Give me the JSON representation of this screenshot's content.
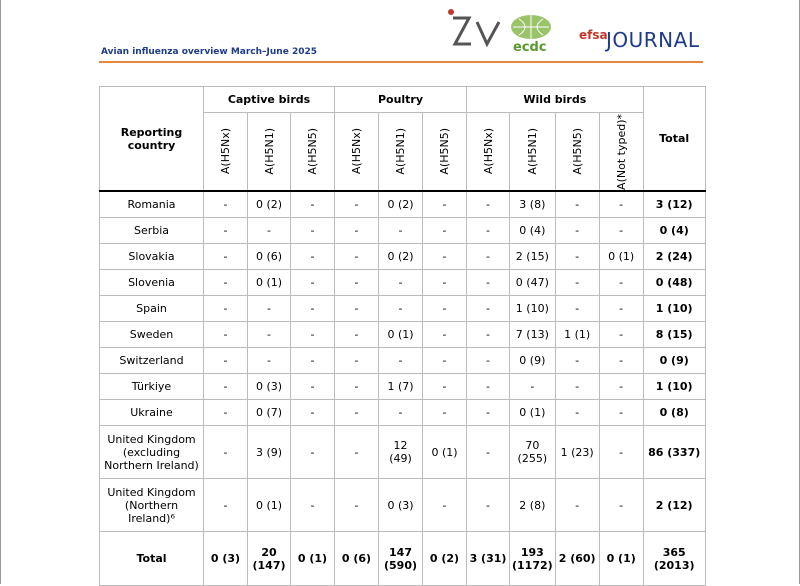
{
  "header": {
    "title": "Avian influenza overview March–June 2025",
    "logo_efsa": "efsa",
    "logo_journal": "JOURNAL",
    "logo_ecdc": "ecdc"
  },
  "table": {
    "country_header": "Reporting country",
    "groups": [
      "Captive birds",
      "Poultry",
      "Wild birds"
    ],
    "subheaders": [
      "A(H5Nx)",
      "A(H5N1)",
      "A(H5N5)",
      "A(H5Nx)",
      "A(H5N1)",
      "A(H5N5)",
      "A(H5Nx)",
      "A(H5N1)",
      "A(H5N5)",
      "A(Not typed)*"
    ],
    "total_header": "Total",
    "rows": [
      {
        "country": "Romania",
        "cells": [
          "-",
          "0 (2)",
          "-",
          "-",
          "0 (2)",
          "-",
          "-",
          "3 (8)",
          "-",
          "-",
          "3 (12)"
        ]
      },
      {
        "country": "Serbia",
        "cells": [
          "-",
          "-",
          "-",
          "-",
          "-",
          "-",
          "-",
          "0 (4)",
          "-",
          "-",
          "0 (4)"
        ]
      },
      {
        "country": "Slovakia",
        "cells": [
          "-",
          "0 (6)",
          "-",
          "-",
          "0 (2)",
          "-",
          "-",
          "2 (15)",
          "-",
          "0 (1)",
          "2 (24)"
        ]
      },
      {
        "country": "Slovenia",
        "cells": [
          "-",
          "0 (1)",
          "-",
          "-",
          "-",
          "-",
          "-",
          "0 (47)",
          "-",
          "-",
          "0 (48)"
        ]
      },
      {
        "country": "Spain",
        "cells": [
          "-",
          "-",
          "-",
          "-",
          "-",
          "-",
          "-",
          "1 (10)",
          "-",
          "-",
          "1 (10)"
        ]
      },
      {
        "country": "Sweden",
        "cells": [
          "-",
          "-",
          "-",
          "-",
          "0 (1)",
          "-",
          "-",
          "7 (13)",
          "1 (1)",
          "-",
          "8 (15)"
        ]
      },
      {
        "country": "Switzerland",
        "cells": [
          "-",
          "-",
          "-",
          "-",
          "-",
          "-",
          "-",
          "0 (9)",
          "-",
          "-",
          "0 (9)"
        ]
      },
      {
        "country": "Türkiye",
        "cells": [
          "-",
          "0 (3)",
          "-",
          "-",
          "1 (7)",
          "-",
          "-",
          "-",
          "-",
          "-",
          "1 (10)"
        ]
      },
      {
        "country": "Ukraine",
        "cells": [
          "-",
          "0 (7)",
          "-",
          "-",
          "-",
          "-",
          "-",
          "0 (1)",
          "-",
          "-",
          "0 (8)"
        ]
      },
      {
        "country": "United Kingdom (excluding Northern Ireland)",
        "cells": [
          "-",
          "3 (9)",
          "-",
          "-",
          "12 (49)",
          "0 (1)",
          "-",
          "70 (255)",
          "1 (23)",
          "-",
          "86 (337)"
        ]
      },
      {
        "country": "United Kingdom (Northern Ireland)⁶",
        "cells": [
          "-",
          "0 (1)",
          "-",
          "-",
          "0 (3)",
          "-",
          "-",
          "2 (8)",
          "-",
          "-",
          "2 (12)"
        ]
      }
    ],
    "total_row": {
      "label": "Total",
      "cells": [
        "0 (3)",
        "20 (147)",
        "0 (1)",
        "0 (6)",
        "147 (590)",
        "0 (2)",
        "3 (31)",
        "193 (1172)",
        "2 (60)",
        "0 (1)",
        "365 (2013)"
      ]
    }
  }
}
